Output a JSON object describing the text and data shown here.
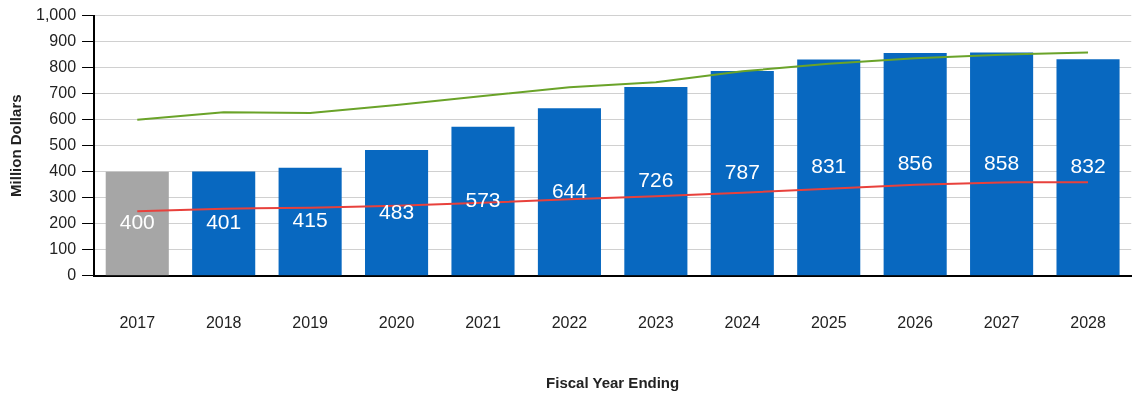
{
  "chart_data": {
    "type": "bar",
    "xlabel": "Fiscal Year Ending",
    "ylabel": "Million Dollars",
    "categories": [
      "2017",
      "2018",
      "2019",
      "2020",
      "2021",
      "2022",
      "2023",
      "2024",
      "2025",
      "2026",
      "2027",
      "2028"
    ],
    "series": [
      {
        "colors": [
          "#a6a6a6",
          "#0868c0",
          "#0868c0",
          "#0868c0",
          "#0868c0",
          "#0868c0",
          "#0868c0",
          "#0868c0",
          "#0868c0",
          "#0868c0",
          "#0868c0",
          "#0868c0"
        ],
        "values": [
          400,
          401,
          415,
          483,
          573,
          644,
          726,
          787,
          831,
          856,
          858,
          832
        ],
        "value_labels": [
          "400",
          "401",
          "415",
          "483",
          "573",
          "644",
          "726",
          "787",
          "831",
          "856",
          "858",
          "832"
        ]
      },
      {
        "type": "line",
        "color": "#6aa329",
        "values": [
          600,
          629,
          626,
          656,
          691,
          725,
          744,
          786,
          815,
          836,
          850,
          858
        ]
      },
      {
        "type": "line",
        "color": "#e8413c",
        "values": [
          248,
          258,
          262,
          269,
          281,
          294,
          306,
          319,
          335,
          350,
          359,
          360
        ]
      }
    ],
    "ylim": [
      0,
      1000
    ],
    "yticks": [
      0,
      {
        "value": 100,
        "label": "100"
      },
      200,
      300,
      400,
      500,
      600,
      700,
      800,
      900,
      {
        "value": 1000,
        "label": "1,000"
      }
    ],
    "grid": "y",
    "legend": false,
    "marker": "none"
  }
}
